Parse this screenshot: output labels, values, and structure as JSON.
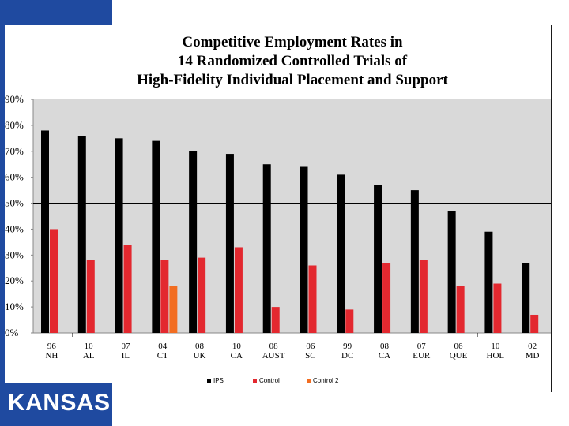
{
  "chart_data": {
    "type": "bar",
    "title_lines": [
      "Competitive Employment Rates in",
      "14 Randomized Controlled Trials of",
      "High-Fidelity Individual Placement and Support"
    ],
    "categories": [
      [
        "96",
        "NH"
      ],
      [
        "10",
        "AL"
      ],
      [
        "07",
        "IL"
      ],
      [
        "04",
        "CT"
      ],
      [
        "08",
        "UK"
      ],
      [
        "10",
        "CA"
      ],
      [
        "08",
        "AUST"
      ],
      [
        "06",
        "SC"
      ],
      [
        "99",
        "DC"
      ],
      [
        "08",
        "CA"
      ],
      [
        "07",
        "EUR"
      ],
      [
        "06",
        "QUE"
      ],
      [
        "10",
        "HOL"
      ],
      [
        "02",
        "MD"
      ]
    ],
    "series": [
      {
        "name": "IPS",
        "color": "#000000",
        "values": [
          78,
          76,
          75,
          74,
          70,
          69,
          65,
          64,
          61,
          57,
          55,
          47,
          39,
          27
        ]
      },
      {
        "name": "Control",
        "color": "#e3282f",
        "values": [
          40,
          28,
          34,
          28,
          29,
          33,
          10,
          26,
          9,
          27,
          28,
          18,
          19,
          7
        ]
      },
      {
        "name": "Control 2",
        "color": "#f26d21",
        "values": [
          null,
          null,
          null,
          18,
          null,
          null,
          null,
          null,
          null,
          null,
          null,
          null,
          null,
          null
        ]
      }
    ],
    "ylim": [
      0,
      90
    ],
    "yticks": [
      0,
      10,
      20,
      30,
      40,
      50,
      60,
      70,
      80,
      90
    ],
    "ytick_labels": [
      "0%",
      "10%",
      "20%",
      "30%",
      "40%",
      "50%",
      "60%",
      "70%",
      "80%",
      "90%"
    ],
    "reference_line": 50,
    "plot_background": "#d9d9d9",
    "legend_position": "bottom"
  },
  "branding": {
    "logo_text": "KANSAS",
    "accent_color": "#1f4aa0"
  }
}
